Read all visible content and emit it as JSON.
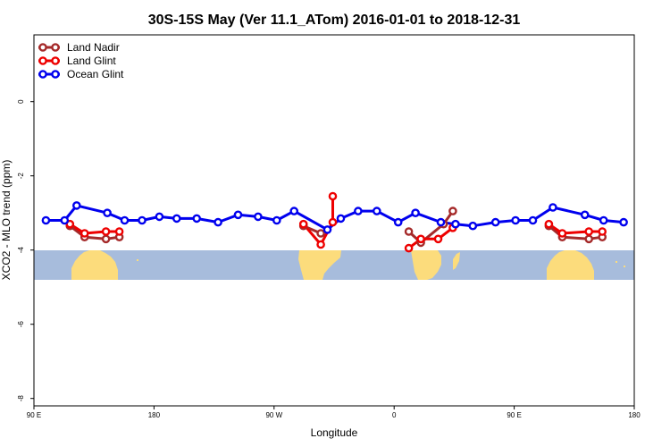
{
  "chart_data": {
    "type": "line",
    "title": "30S-15S May (Ver 11.1_ATom)   2016-01-01 to 2018-12-31",
    "xlabel": "Longitude",
    "ylabel": "XCO2 - MLO trend (ppm)",
    "x_ticks": [
      {
        "value": 90,
        "label": "90 E"
      },
      {
        "value": 180,
        "label": "180"
      },
      {
        "value": 270,
        "label": "90 W"
      },
      {
        "value": 360,
        "label": "0"
      },
      {
        "value": 450,
        "label": "90 E"
      },
      {
        "value": 540,
        "label": "180"
      }
    ],
    "y_ticks": [
      {
        "value": 0,
        "label": "0"
      },
      {
        "value": -2,
        "label": "-2"
      },
      {
        "value": -4,
        "label": "-4"
      },
      {
        "value": -6,
        "label": "-6"
      },
      {
        "value": -8,
        "label": "-8"
      }
    ],
    "xlim": [
      90,
      540
    ],
    "ylim": [
      -8.2,
      1.8
    ],
    "legend_position": "top-left",
    "background_map": "world land/ocean map band for 30S-15S",
    "colors": {
      "ocean": "#a7bcdc",
      "land": "#fcdc7c",
      "land_nadir": "#a52a2a",
      "land_glint": "#ee0000",
      "ocean_glint": "#0000ee"
    },
    "series": [
      {
        "name": "Land Nadir",
        "color": "#a52a2a",
        "segments": [
          [
            [
              117,
              -3.35
            ],
            [
              128,
              -3.65
            ],
            [
              144,
              -3.7
            ],
            [
              154,
              -3.65
            ]
          ],
          [
            [
              292,
              -3.35
            ],
            [
              305,
              -3.55
            ]
          ],
          [
            [
              371,
              -3.5
            ],
            [
              380,
              -3.8
            ],
            [
              397,
              -3.3
            ],
            [
              404,
              -2.95
            ]
          ],
          [
            [
              476,
              -3.35
            ],
            [
              486,
              -3.65
            ],
            [
              506,
              -3.7
            ],
            [
              516,
              -3.65
            ]
          ]
        ]
      },
      {
        "name": "Land Glint",
        "color": "#ee0000",
        "segments": [
          [
            [
              117,
              -3.3
            ],
            [
              128,
              -3.55
            ],
            [
              144,
              -3.5
            ],
            [
              154,
              -3.5
            ]
          ],
          [
            [
              292,
              -3.3
            ],
            [
              305,
              -3.85
            ],
            [
              314,
              -3.25
            ],
            [
              314,
              -2.55
            ]
          ],
          [
            [
              371,
              -3.95
            ],
            [
              380,
              -3.7
            ],
            [
              393,
              -3.7
            ],
            [
              404,
              -3.4
            ]
          ],
          [
            [
              476,
              -3.3
            ],
            [
              486,
              -3.55
            ],
            [
              506,
              -3.5
            ],
            [
              516,
              -3.5
            ]
          ]
        ]
      },
      {
        "name": "Ocean Glint",
        "color": "#0000ee",
        "segments": [
          [
            [
              99,
              -3.2
            ],
            [
              113,
              -3.2
            ],
            [
              122,
              -2.8
            ],
            [
              145,
              -3.0
            ],
            [
              158,
              -3.2
            ],
            [
              171,
              -3.2
            ],
            [
              184,
              -3.1
            ],
            [
              197,
              -3.15
            ],
            [
              212,
              -3.15
            ],
            [
              228,
              -3.25
            ],
            [
              243,
              -3.05
            ],
            [
              258,
              -3.1
            ],
            [
              272,
              -3.2
            ],
            [
              285,
              -2.95
            ],
            [
              310,
              -3.45
            ],
            [
              320,
              -3.15
            ],
            [
              333,
              -2.95
            ],
            [
              347,
              -2.95
            ],
            [
              363,
              -3.25
            ],
            [
              376,
              -3.0
            ],
            [
              395,
              -3.25
            ],
            [
              406,
              -3.3
            ],
            [
              419,
              -3.35
            ],
            [
              436,
              -3.25
            ],
            [
              451,
              -3.2
            ],
            [
              464,
              -3.2
            ],
            [
              479,
              -2.85
            ],
            [
              503,
              -3.05
            ],
            [
              517,
              -3.2
            ],
            [
              532,
              -3.25
            ]
          ]
        ]
      }
    ]
  }
}
